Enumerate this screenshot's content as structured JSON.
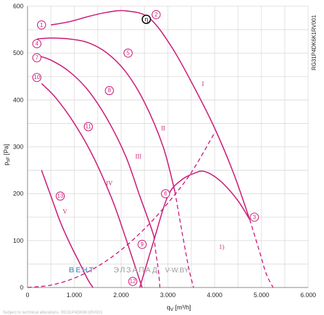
{
  "chart_data": {
    "type": "line",
    "title": "",
    "model_code": "RG31P4DK6K1RV001",
    "xlabel": "q",
    "xlabel_sub": "V",
    "xlabel_unit": " [m³/h]",
    "ylabel": "p",
    "ylabel_sub": "sF",
    "ylabel_unit": " [Pa]",
    "xlim": [
      0,
      6000
    ],
    "ylim": [
      0,
      600
    ],
    "x_ticks": [
      0,
      1000,
      2000,
      3000,
      4000,
      5000,
      6000
    ],
    "x_tick_labels": [
      "0",
      "1.000",
      "2.000",
      "3.000",
      "4.000",
      "5.000",
      "6.000"
    ],
    "y_ticks": [
      0,
      100,
      200,
      300,
      400,
      500,
      600
    ],
    "y_tick_labels": [
      "0",
      "100",
      "200",
      "300",
      "400",
      "500",
      "600"
    ],
    "grid": true,
    "color": "#cc1f7a",
    "series": [
      {
        "name": "I",
        "style": "solid",
        "x": [
          500,
          900,
          1300,
          1700,
          2100,
          2600,
          3100,
          3600,
          4000,
          4400,
          4750
        ],
        "y": [
          560,
          567,
          578,
          587,
          590,
          575,
          510,
          420,
          340,
          245,
          145
        ]
      },
      {
        "name": "I",
        "style": "dashed",
        "x": [
          4750,
          4950,
          5100,
          5250
        ],
        "y": [
          145,
          80,
          30,
          0
        ]
      },
      {
        "name": "II",
        "style": "solid",
        "x": [
          200,
          500,
          900,
          1300,
          1700,
          2100,
          2500,
          2900,
          3150
        ],
        "y": [
          530,
          532,
          530,
          522,
          500,
          460,
          395,
          300,
          205
        ]
      },
      {
        "name": "II",
        "style": "dashed",
        "x": [
          3150,
          3300,
          3450,
          3550
        ],
        "y": [
          205,
          120,
          40,
          0
        ]
      },
      {
        "name": "III",
        "style": "solid",
        "x": [
          200,
          500,
          900,
          1300,
          1700,
          2100,
          2400,
          2600,
          2700
        ],
        "y": [
          495,
          485,
          460,
          420,
          360,
          280,
          195,
          140,
          110
        ]
      },
      {
        "name": "III",
        "style": "dashed",
        "x": [
          2700,
          2750,
          2800,
          2830
        ],
        "y": [
          110,
          70,
          35,
          0
        ]
      },
      {
        "name": "IV",
        "style": "solid",
        "x": [
          300,
          600,
          1000,
          1400,
          1800,
          2050,
          2250,
          2400,
          2450
        ],
        "y": [
          435,
          405,
          350,
          280,
          190,
          120,
          60,
          15,
          0
        ]
      },
      {
        "name": "V",
        "style": "solid",
        "x": [
          300,
          500,
          700,
          900,
          1100,
          1300,
          1400
        ],
        "y": [
          250,
          195,
          140,
          95,
          55,
          15,
          0
        ]
      },
      {
        "name": "1)",
        "style": "solid",
        "x": [
          2400,
          2700,
          3000,
          3300,
          3600,
          3750,
          3950,
          4200,
          4500,
          4750
        ],
        "y": [
          0,
          100,
          195,
          230,
          245,
          248,
          240,
          220,
          185,
          145
        ]
      },
      {
        "name": "",
        "style": "dashed",
        "x": [
          0,
          500,
          1000,
          1500,
          2000,
          2500,
          3000,
          3500,
          4000
        ],
        "y": [
          0,
          5,
          20,
          45,
          80,
          125,
          180,
          245,
          330
        ]
      }
    ],
    "markers": [
      {
        "label": "1",
        "x": 300,
        "y": 560
      },
      {
        "label": "2",
        "x": 2750,
        "y": 582
      },
      {
        "label": "3",
        "x": 4850,
        "y": 150
      },
      {
        "label": "4",
        "x": 200,
        "y": 520
      },
      {
        "label": "5",
        "x": 2150,
        "y": 500
      },
      {
        "label": "6",
        "x": 2950,
        "y": 200
      },
      {
        "label": "7",
        "x": 200,
        "y": 490
      },
      {
        "label": "8",
        "x": 1750,
        "y": 420
      },
      {
        "label": "9",
        "x": 2450,
        "y": 92
      },
      {
        "label": "10",
        "x": 200,
        "y": 448
      },
      {
        "label": "11",
        "x": 1300,
        "y": 343
      },
      {
        "label": "12",
        "x": 2250,
        "y": 13
      },
      {
        "label": "13",
        "x": 700,
        "y": 195
      }
    ],
    "annotations": [
      {
        "text": "I",
        "x": 3750,
        "y": 430
      },
      {
        "text": "II",
        "x": 2900,
        "y": 335
      },
      {
        "text": "III",
        "x": 2370,
        "y": 275
      },
      {
        "text": "IV",
        "x": 1750,
        "y": 218
      },
      {
        "text": "V",
        "x": 800,
        "y": 158
      },
      {
        "text": "1)",
        "x": 4150,
        "y": 82
      }
    ],
    "operating_point": {
      "label": "η",
      "x": 2540,
      "y": 572
    }
  },
  "watermark": {
    "part1": "ВЕНТ",
    "part2": "ЭЛЗАПАД",
    "domain": "V-W.BY"
  },
  "footer_text": "Subject to technical alterations. RG31P4DK6K1RV001"
}
